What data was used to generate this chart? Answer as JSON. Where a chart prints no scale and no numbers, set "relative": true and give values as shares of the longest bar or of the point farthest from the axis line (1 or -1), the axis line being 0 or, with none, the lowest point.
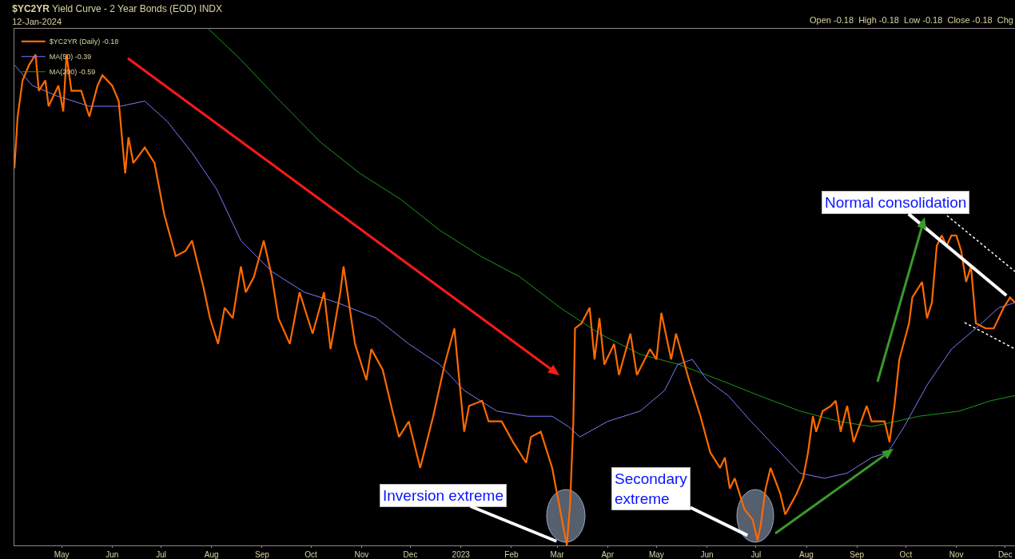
{
  "chart_data": {
    "type": "line",
    "title": "$YC2YR Yield Curve - 2 Year Bonds (EOD) INDX",
    "subtitle": "12-Jan-2024",
    "relative": true,
    "legend": "top left",
    "grid": false,
    "tick_labels": "x",
    "marker": "none",
    "line_style": "solid",
    "xlim": [
      "2022-04-02",
      "2023-12-07"
    ],
    "xticks": [
      {
        "value": "2022-05-01",
        "label": "May"
      },
      {
        "value": "2022-06-01",
        "label": "Jun"
      },
      {
        "value": "2022-07-01",
        "label": "Jul"
      },
      {
        "value": "2022-08-01",
        "label": "Aug"
      },
      {
        "value": "2022-09-01",
        "label": "Sep"
      },
      {
        "value": "2022-10-01",
        "label": "Oct"
      },
      {
        "value": "2022-11-01",
        "label": "Nov"
      },
      {
        "value": "2022-12-01",
        "label": "Dec"
      },
      {
        "value": "2023-01-01",
        "label": "2023"
      },
      {
        "value": "2023-02-01",
        "label": "Feb"
      },
      {
        "value": "2023-03-01",
        "label": "Mar"
      },
      {
        "value": "2023-04-01",
        "label": "Apr"
      },
      {
        "value": "2023-05-01",
        "label": "May"
      },
      {
        "value": "2023-06-01",
        "label": "Jun"
      },
      {
        "value": "2023-07-01",
        "label": "Jul"
      },
      {
        "value": "2023-08-01",
        "label": "Aug"
      },
      {
        "value": "2023-09-01",
        "label": "Sep"
      },
      {
        "value": "2023-10-01",
        "label": "Oct"
      },
      {
        "value": "2023-11-01",
        "label": "Nov"
      },
      {
        "value": "2023-12-01",
        "label": "Dec"
      }
    ],
    "series": [
      {
        "name": "$YC2YR (Daily) -0.18",
        "color": "#ff6a00",
        "x": [
          "2022-04-02",
          "2022-04-04",
          "2022-04-07",
          "2022-04-11",
          "2022-04-15",
          "2022-04-17",
          "2022-04-21",
          "2022-04-23",
          "2022-04-29",
          "2022-05-02",
          "2022-05-04",
          "2022-05-07",
          "2022-05-13",
          "2022-05-18",
          "2022-05-23",
          "2022-05-26",
          "2022-06-01",
          "2022-06-05",
          "2022-06-09",
          "2022-06-11",
          "2022-06-14",
          "2022-06-21",
          "2022-06-27",
          "2022-06-30",
          "2022-07-03",
          "2022-07-10",
          "2022-07-16",
          "2022-07-20",
          "2022-07-27",
          "2022-07-31",
          "2022-08-05",
          "2022-08-09",
          "2022-08-14",
          "2022-08-19",
          "2022-08-22",
          "2022-08-27",
          "2022-09-02",
          "2022-09-07",
          "2022-09-11",
          "2022-09-18",
          "2022-09-24",
          "2022-10-02",
          "2022-10-09",
          "2022-10-13",
          "2022-10-19",
          "2022-10-21",
          "2022-10-28",
          "2022-11-04",
          "2022-11-07",
          "2022-11-14",
          "2022-11-20",
          "2022-11-24",
          "2022-11-30",
          "2022-12-07",
          "2022-12-15",
          "2022-12-22",
          "2022-12-28",
          "2023-01-03",
          "2023-01-06",
          "2023-01-14",
          "2023-01-18",
          "2023-01-26",
          "2023-02-02",
          "2023-02-10",
          "2023-02-13",
          "2023-02-19",
          "2023-02-26",
          "2023-03-04",
          "2023-03-07",
          "2023-03-09",
          "2023-03-11",
          "2023-03-12",
          "2023-03-16",
          "2023-03-21",
          "2023-03-24",
          "2023-03-27",
          "2023-03-30",
          "2023-04-05",
          "2023-04-08",
          "2023-04-15",
          "2023-04-19",
          "2023-04-27",
          "2023-05-01",
          "2023-05-04",
          "2023-05-10",
          "2023-05-13",
          "2023-05-21",
          "2023-05-28",
          "2023-06-03",
          "2023-06-09",
          "2023-06-12",
          "2023-06-15",
          "2023-06-18",
          "2023-06-24",
          "2023-06-29",
          "2023-07-02",
          "2023-07-04",
          "2023-07-07",
          "2023-07-10",
          "2023-07-16",
          "2023-07-19",
          "2023-07-26",
          "2023-07-30",
          "2023-08-02",
          "2023-08-05",
          "2023-08-07",
          "2023-08-11",
          "2023-08-16",
          "2023-08-19",
          "2023-08-22",
          "2023-08-26",
          "2023-08-30",
          "2023-09-07",
          "2023-09-10",
          "2023-09-18",
          "2023-09-21",
          "2023-09-24",
          "2023-09-27",
          "2023-10-03",
          "2023-10-05",
          "2023-10-11",
          "2023-10-14",
          "2023-10-17",
          "2023-10-20",
          "2023-10-23",
          "2023-10-26",
          "2023-10-29",
          "2023-11-01",
          "2023-11-04",
          "2023-11-07",
          "2023-11-10",
          "2023-11-13",
          "2023-11-19",
          "2023-11-24",
          "2023-11-30",
          "2023-12-04",
          "2023-12-07"
        ],
        "values": [
          0.73,
          0.83,
          0.9,
          0.93,
          0.95,
          0.88,
          0.9,
          0.85,
          0.89,
          0.84,
          0.95,
          0.88,
          0.88,
          0.83,
          0.89,
          0.91,
          0.89,
          0.86,
          0.72,
          0.79,
          0.74,
          0.77,
          0.74,
          0.69,
          0.64,
          0.56,
          0.57,
          0.59,
          0.5,
          0.44,
          0.39,
          0.46,
          0.44,
          0.54,
          0.49,
          0.52,
          0.59,
          0.52,
          0.44,
          0.39,
          0.49,
          0.41,
          0.49,
          0.38,
          0.49,
          0.54,
          0.39,
          0.32,
          0.38,
          0.34,
          0.26,
          0.21,
          0.24,
          0.15,
          0.25,
          0.35,
          0.42,
          0.22,
          0.27,
          0.28,
          0.24,
          0.24,
          0.2,
          0.16,
          0.21,
          0.22,
          0.15,
          0.05,
          0,
          0.08,
          0.24,
          0.42,
          0.43,
          0.46,
          0.36,
          0.44,
          0.35,
          0.39,
          0.33,
          0.41,
          0.33,
          0.38,
          0.36,
          0.45,
          0.36,
          0.41,
          0.32,
          0.25,
          0.18,
          0.15,
          0.17,
          0.11,
          0.13,
          0.07,
          0.05,
          0.01,
          0.04,
          0.11,
          0.15,
          0.1,
          0.06,
          0.1,
          0.13,
          0.18,
          0.25,
          0.22,
          0.26,
          0.27,
          0.28,
          0.22,
          0.27,
          0.2,
          0.27,
          0.24,
          0.24,
          0.2,
          0.27,
          0.36,
          0.43,
          0.48,
          0.51,
          0.44,
          0.47,
          0.58,
          0.6,
          0.58,
          0.6,
          0.6,
          0.57,
          0.51,
          0.54,
          0.43,
          0.42,
          0.42,
          0.46,
          0.48,
          0.47
        ]
      },
      {
        "name": "MA(50) -0.39",
        "color": "#7b7bff",
        "x": [
          "2022-04-02",
          "2022-04-13",
          "2022-04-28",
          "2022-05-18",
          "2022-06-06",
          "2022-06-21",
          "2022-07-05",
          "2022-07-20",
          "2022-08-04",
          "2022-08-19",
          "2022-09-07",
          "2022-09-27",
          "2022-10-17",
          "2022-11-10",
          "2022-11-30",
          "2022-12-19",
          "2023-01-03",
          "2023-01-23",
          "2023-02-11",
          "2023-02-26",
          "2023-03-08",
          "2023-03-15",
          "2023-04-01",
          "2023-04-21",
          "2023-05-06",
          "2023-05-14",
          "2023-05-23",
          "2023-06-01",
          "2023-06-14",
          "2023-06-28",
          "2023-07-13",
          "2023-07-28",
          "2023-08-12",
          "2023-08-26",
          "2023-09-10",
          "2023-09-20",
          "2023-09-30",
          "2023-10-14",
          "2023-10-29",
          "2023-11-13",
          "2023-11-27",
          "2023-12-07"
        ],
        "values": [
          0.93,
          0.89,
          0.87,
          0.85,
          0.85,
          0.86,
          0.82,
          0.76,
          0.69,
          0.59,
          0.53,
          0.49,
          0.47,
          0.44,
          0.39,
          0.35,
          0.3,
          0.26,
          0.25,
          0.25,
          0.23,
          0.21,
          0.24,
          0.26,
          0.3,
          0.35,
          0.36,
          0.32,
          0.29,
          0.24,
          0.19,
          0.14,
          0.13,
          0.14,
          0.17,
          0.18,
          0.23,
          0.31,
          0.38,
          0.42,
          0.46,
          0.47
        ]
      },
      {
        "name": "MA(200) -0.59",
        "color": "#1a9a1a",
        "x": [
          "2022-07-30",
          "2022-08-19",
          "2022-09-12",
          "2022-10-07",
          "2022-10-31",
          "2022-11-25",
          "2022-12-19",
          "2023-01-13",
          "2023-02-06",
          "2023-03-03",
          "2023-03-27",
          "2023-04-21",
          "2023-05-15",
          "2023-06-09",
          "2023-07-03",
          "2023-07-28",
          "2023-08-21",
          "2023-09-10",
          "2023-09-25",
          "2023-10-09",
          "2023-11-03",
          "2023-11-22",
          "2023-12-07"
        ],
        "values": [
          1.0,
          0.94,
          0.86,
          0.78,
          0.72,
          0.67,
          0.61,
          0.56,
          0.52,
          0.46,
          0.41,
          0.37,
          0.35,
          0.32,
          0.29,
          0.26,
          0.24,
          0.23,
          0.24,
          0.25,
          0.26,
          0.28,
          0.29
        ]
      }
    ],
    "annotations": [
      "Open -0.18  High -0.18  Low -0.18  Close -0.18  Chg",
      {
        "text": "Inversion extreme",
        "x": "2023-03-07",
        "y": 0
      },
      {
        "text": "Secondary\nextreme",
        "x": "2023-07-02",
        "y": 0.01
      },
      {
        "text": "Normal consolidation",
        "x": "2023-12-07",
        "y": 0.47
      }
    ]
  }
}
